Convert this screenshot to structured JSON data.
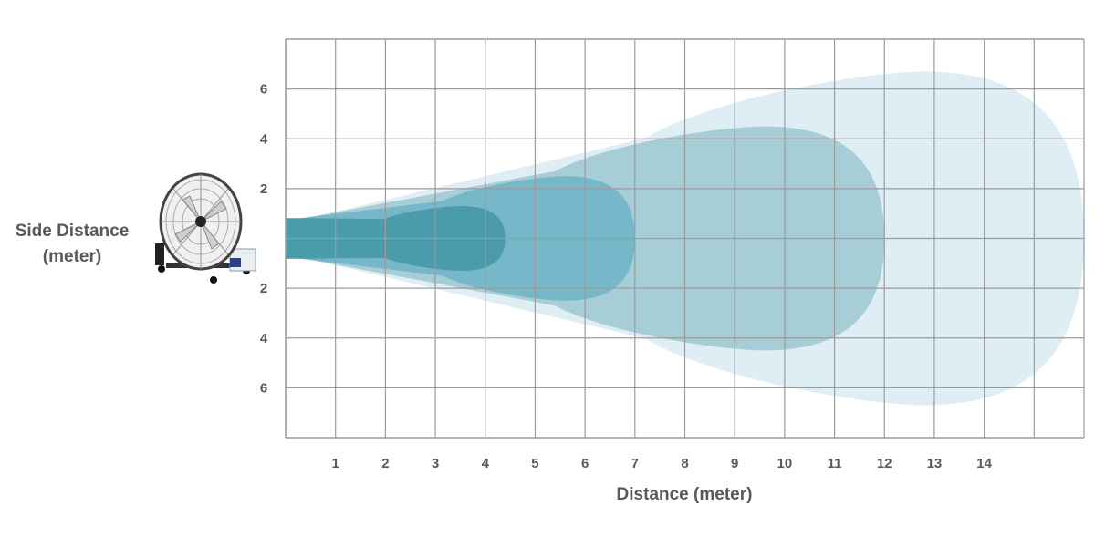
{
  "y_axis": {
    "title_line1": "Side Distance",
    "title_line2": "(meter)",
    "tick_labels_top": [
      "6",
      "4",
      "2"
    ],
    "tick_labels_bottom": [
      "2",
      "4",
      "6"
    ]
  },
  "x_axis": {
    "title": "Distance (meter)",
    "tick_labels": [
      "1",
      "2",
      "3",
      "4",
      "5",
      "6",
      "7",
      "8",
      "9",
      "10",
      "11",
      "12",
      "13",
      "14"
    ]
  },
  "image": {
    "subject": "fan-icon"
  },
  "chart_data": {
    "type": "area",
    "xlim": [
      0,
      16
    ],
    "ylim": [
      -8,
      8
    ],
    "grid": true,
    "zones": [
      {
        "reach_m": 16.0,
        "max_half_width_m": 6.7,
        "color": "#dcedf4"
      },
      {
        "reach_m": 12.0,
        "max_half_width_m": 4.5,
        "color": "#a2cbd2"
      },
      {
        "reach_m": 7.0,
        "max_half_width_m": 2.5,
        "color": "#72b5c8"
      },
      {
        "reach_m": 4.4,
        "max_half_width_m": 1.3,
        "color": "#4699aa"
      }
    ],
    "grid_color": "#9b9b9b"
  }
}
